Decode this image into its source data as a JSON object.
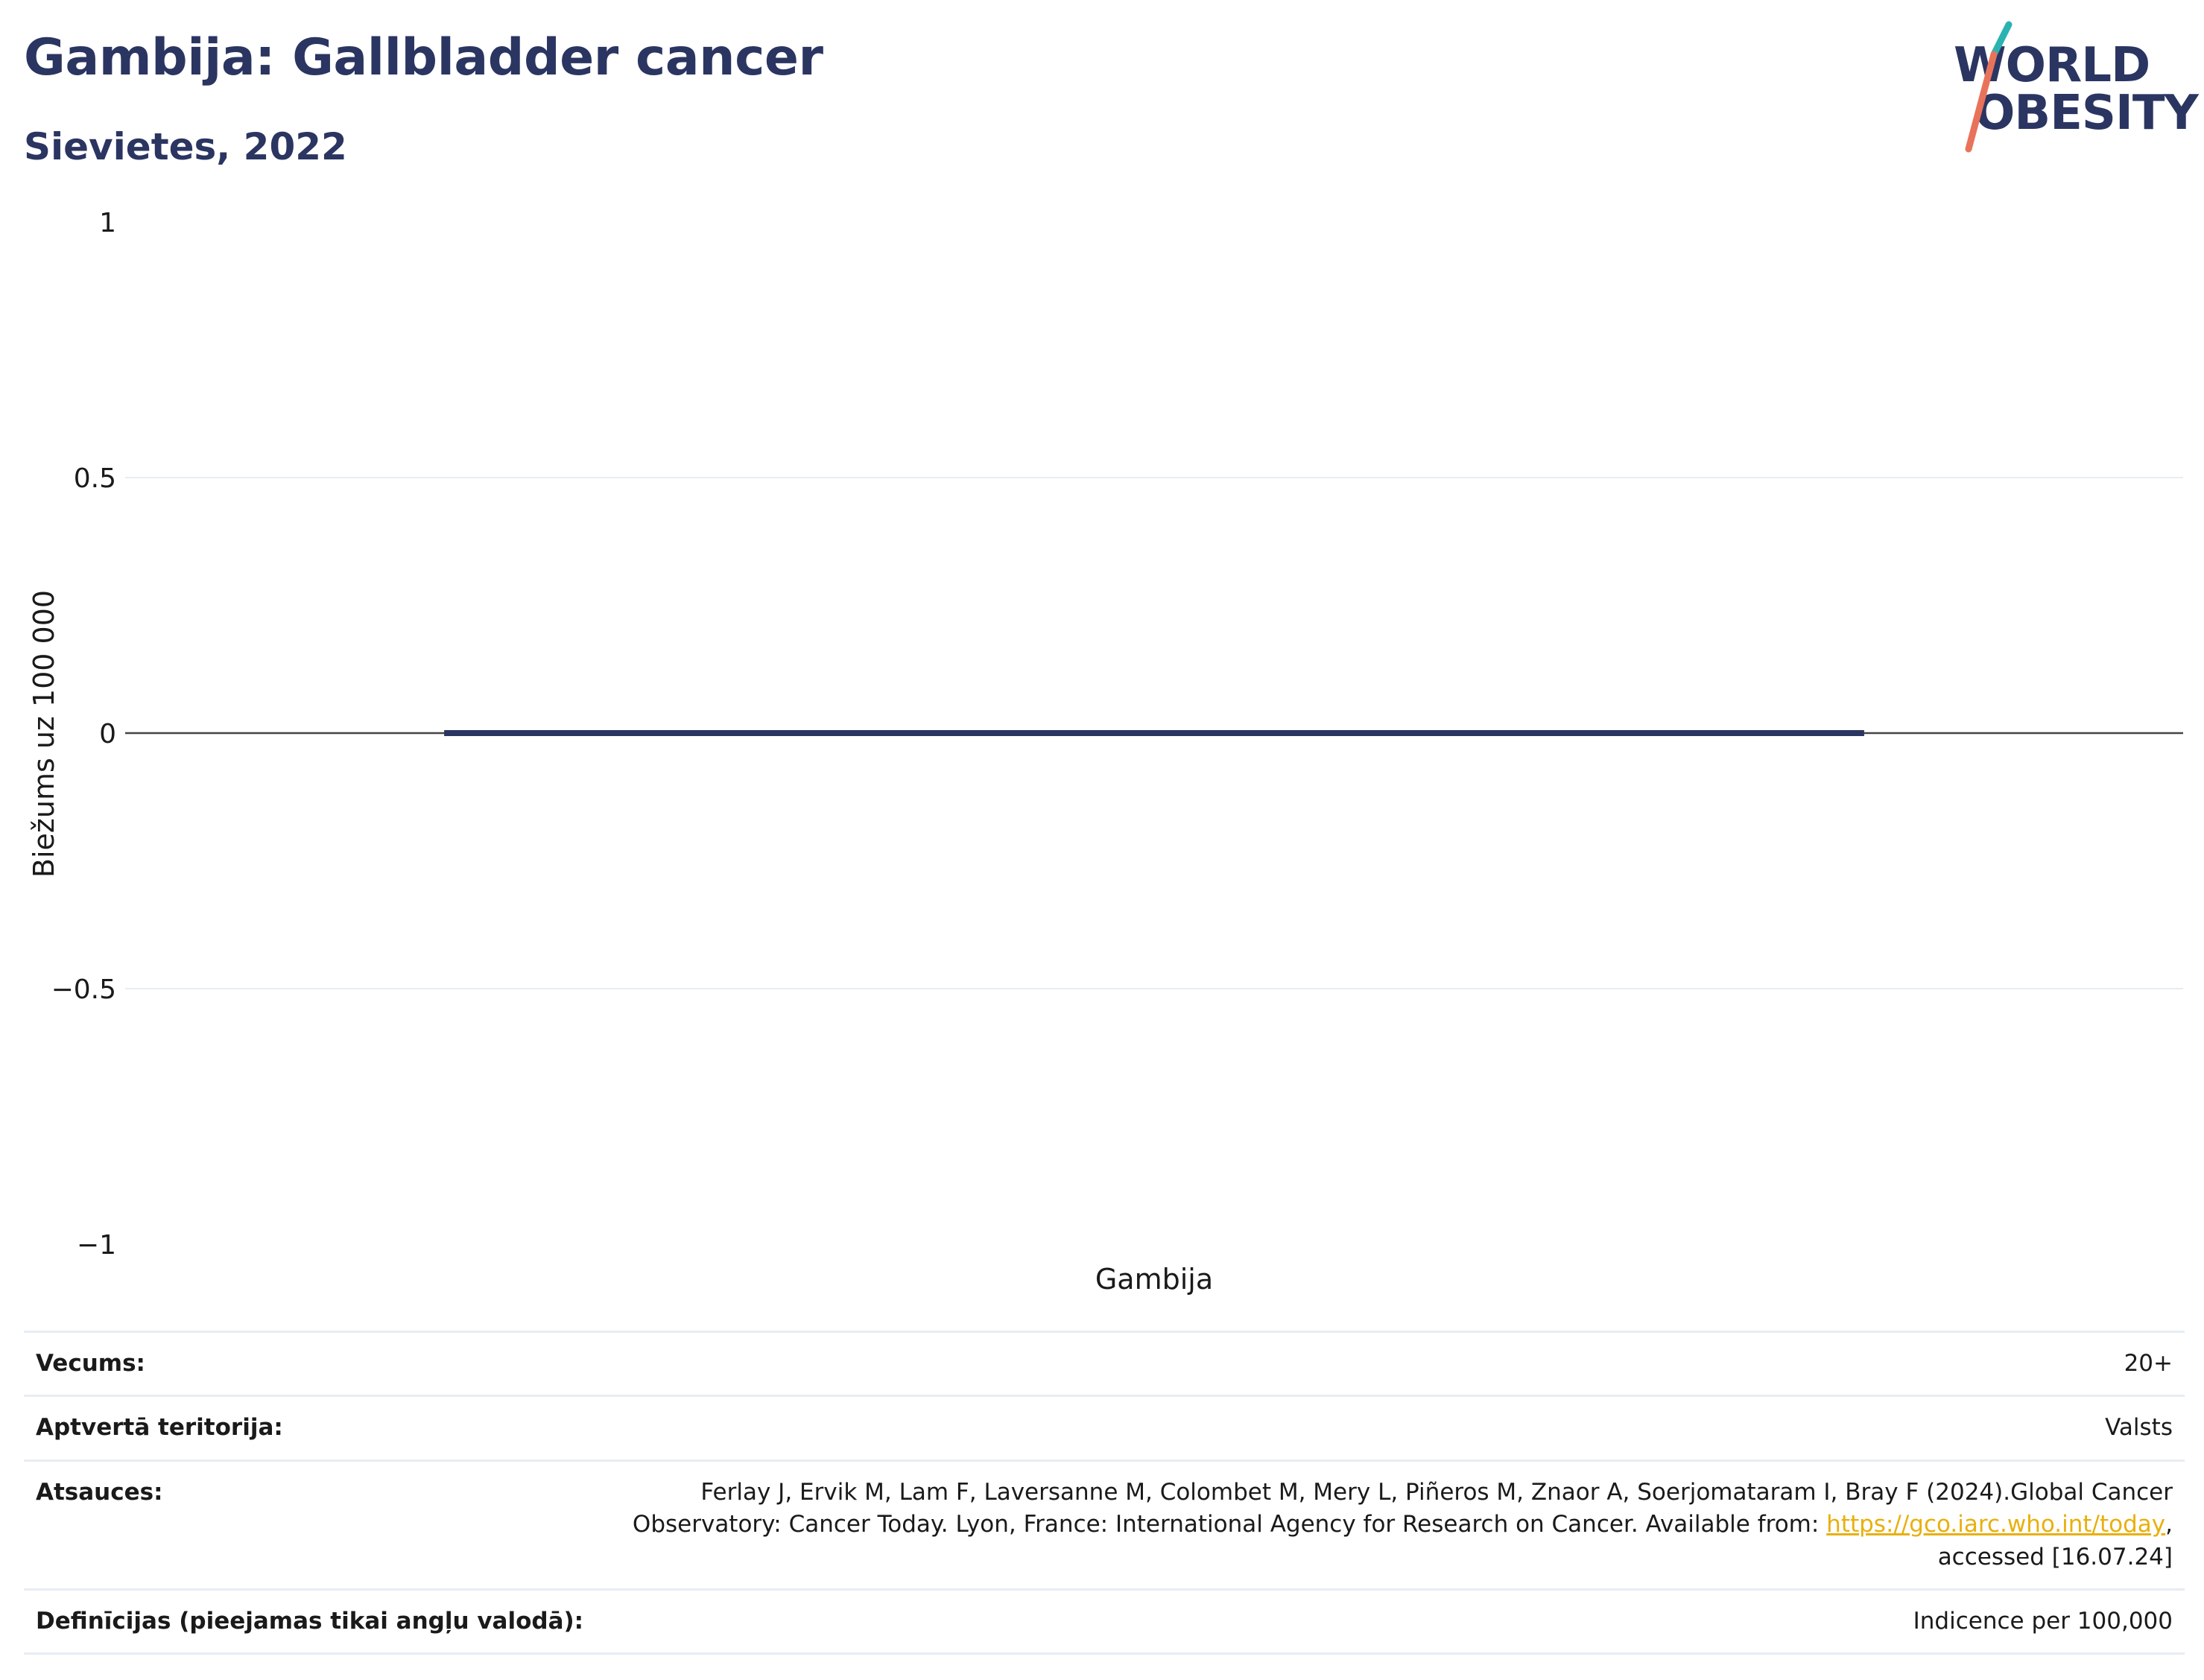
{
  "header": {
    "title": "Gambija: Gallbladder cancer",
    "subtitle": "Sievietes, 2022"
  },
  "logo": {
    "line1": "WORLD",
    "line2": "OBESITY",
    "colors": {
      "navy": "#2b3561",
      "teal": "#2bb3b1",
      "coral": "#e8735a"
    }
  },
  "colors": {
    "bar": "#2b3561",
    "grid": "#e6edf4",
    "zero_line": "#444444",
    "link": "#e8b00d",
    "text": "#1a1a1a"
  },
  "chart_data": {
    "type": "bar",
    "categories": [
      "Gambija"
    ],
    "series": [
      {
        "values": [
          0
        ]
      }
    ],
    "title": "Gambija: Gallbladder cancer",
    "subtitle": "Sievietes, 2022",
    "xlabel": "",
    "ylabel": "Biežums uz 100 000",
    "ylim": [
      -1,
      1
    ],
    "yticks": [
      1,
      0.5,
      0,
      -0.5,
      -1
    ],
    "ytick_labels": [
      "1",
      "0.5",
      "0",
      "−0.5",
      "−1"
    ],
    "grid": true,
    "legend": "none"
  },
  "info": {
    "rows": [
      {
        "label": "Vecums:",
        "value": "20+"
      },
      {
        "label": "Aptvertā teritorija:",
        "value": "Valsts"
      }
    ],
    "references": {
      "label": "Atsauces:",
      "text_before": "Ferlay J, Ervik M, Lam F, Laversanne M, Colombet M, Mery L, Piñeros M, Znaor A, Soerjomataram I, Bray F (2024).Global Cancer Observatory: Cancer Today. Lyon, France: International Agency for Research on Cancer. Available from: ",
      "link_text": "https://gco.iarc.who.int/today",
      "text_after": ", accessed [16.07.24]"
    },
    "definitions": {
      "label": "Definīcijas (pieejamas tikai angļu valodā):",
      "value": "Indicence per 100,000"
    }
  }
}
